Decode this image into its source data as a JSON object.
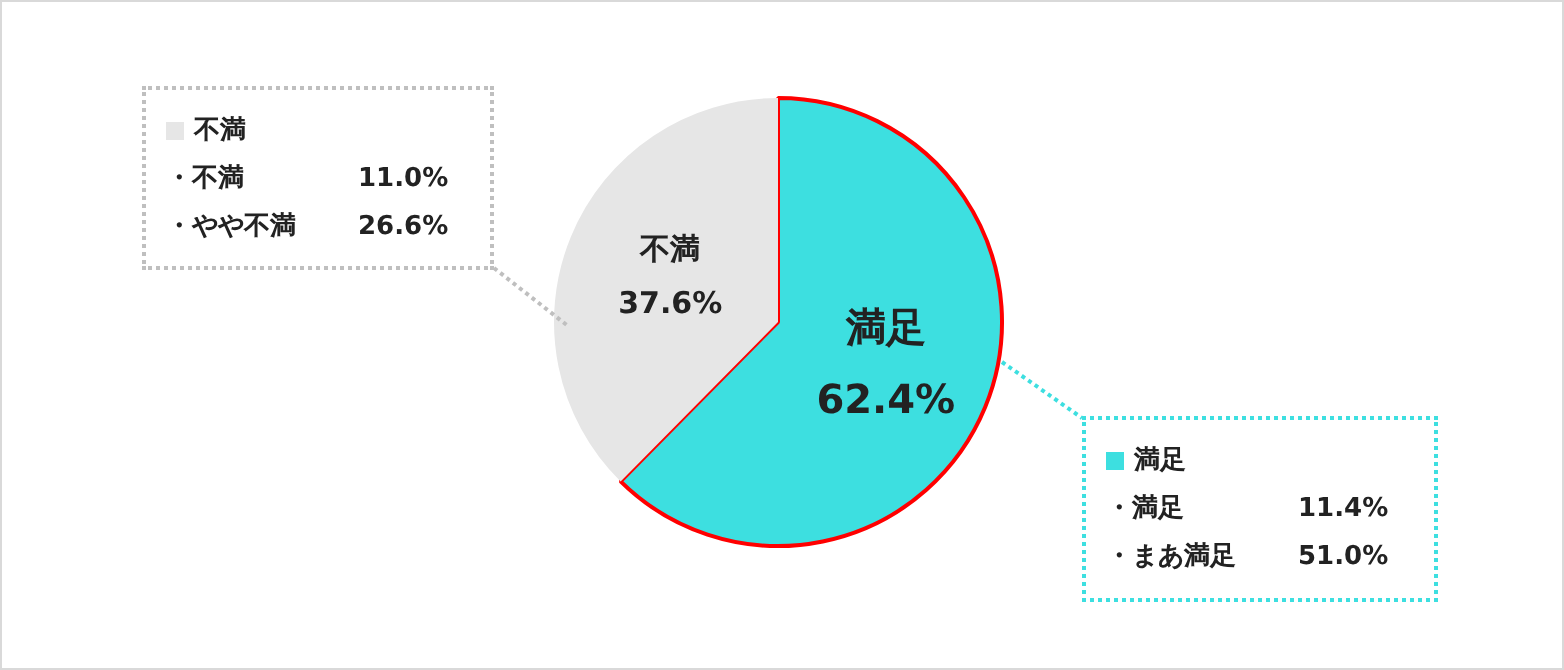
{
  "chart_data": {
    "type": "pie",
    "categories": [
      "満足",
      "不満"
    ],
    "values": [
      62.4,
      37.6
    ],
    "colors": [
      "#3ddfe0",
      "#e6e6e6"
    ],
    "value_labels": [
      "62.4%",
      "37.6%"
    ],
    "legend": false,
    "annotations": [
      "不満",
      "・不満 11.0%",
      "・やや不満 26.6%",
      "満足",
      "・満足 11.4%",
      "・まあ満足 51.0%"
    ]
  }
}
